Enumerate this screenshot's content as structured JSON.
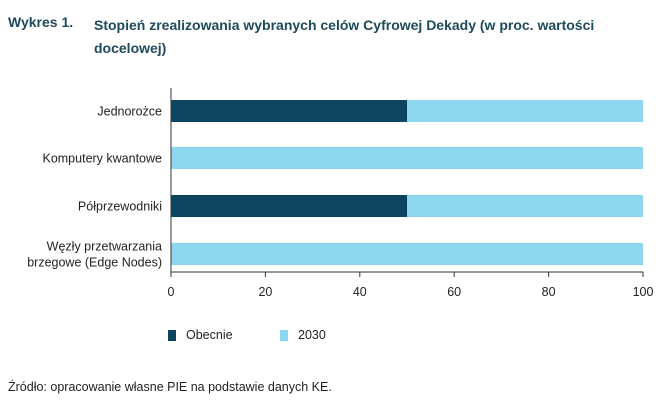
{
  "figure": {
    "number": "Wykres 1.",
    "title": "Stopień zrealizowania wybranych celów Cyfrowej Dekady (w proc. wartości docelowej)"
  },
  "chart_data": {
    "type": "bar",
    "orientation": "horizontal",
    "stacked": true,
    "categories": [
      "Jednorożce",
      "Komputery kwantowe",
      "Półprzewodniki",
      "Węzły przetwarzania brzegowe (Edge Nodes)"
    ],
    "category_label_lines": [
      [
        "Jednorożce"
      ],
      [
        "Komputery kwantowe"
      ],
      [
        "Półprzewodniki"
      ],
      [
        "Węzły przetwarzania",
        "brzegowe (Edge Nodes)"
      ]
    ],
    "series": [
      {
        "name": "Obecnie",
        "color": "#0d4460",
        "values": [
          50,
          0,
          50,
          0
        ]
      },
      {
        "name": "2030",
        "color": "#8dd6f0",
        "values": [
          50,
          100,
          50,
          100
        ]
      }
    ],
    "xlim": [
      0,
      100
    ],
    "xticks": [
      0,
      20,
      40,
      60,
      80,
      100
    ],
    "grid": false,
    "legend_position": "bottom-left"
  },
  "source": "Źródło: opracowanie własne PIE na podstawie danych KE."
}
